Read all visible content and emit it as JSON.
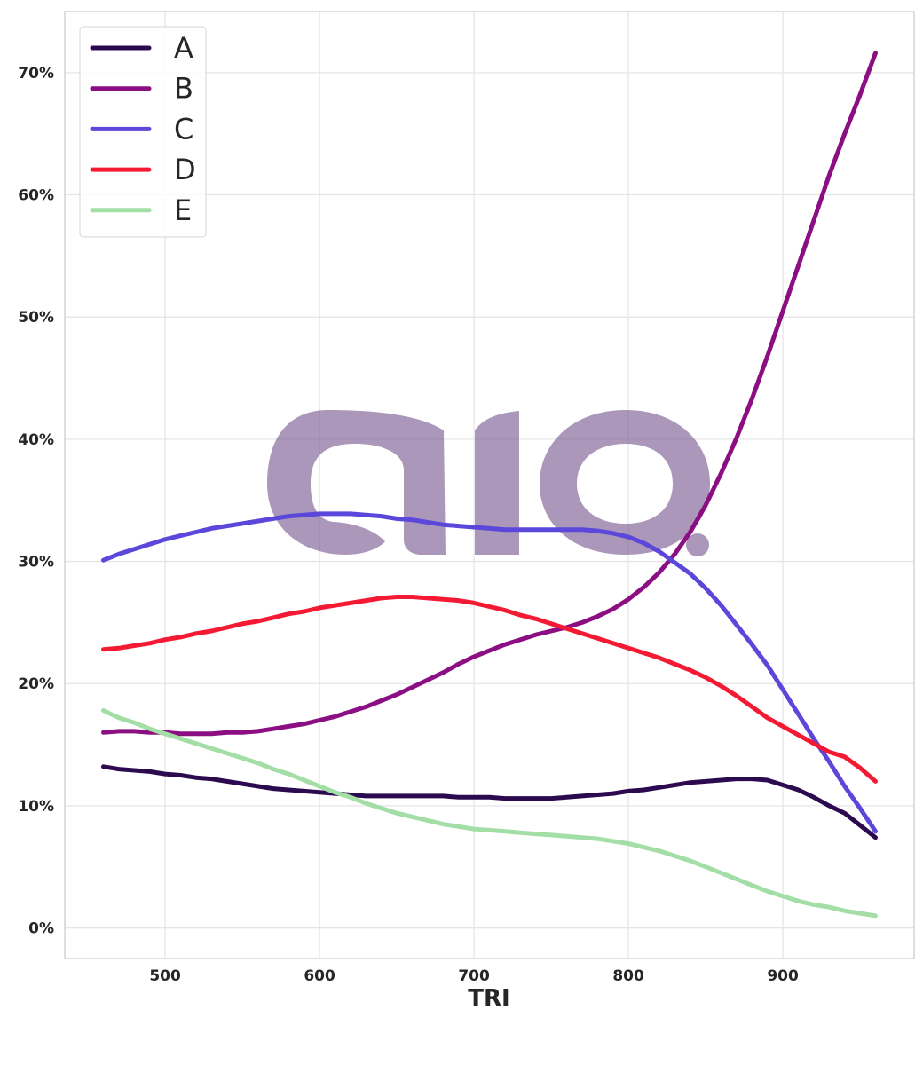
{
  "chart_data": {
    "type": "line",
    "xlabel": "TRI",
    "ylabel": "",
    "xlim": [
      435,
      985
    ],
    "ylim": [
      -2.5,
      75
    ],
    "x_ticks": [
      500,
      600,
      700,
      800,
      900
    ],
    "y_ticks": [
      0,
      10,
      20,
      30,
      40,
      50,
      60,
      70
    ],
    "y_tick_suffix": "%",
    "grid": true,
    "legend_position": "top-left",
    "watermark": "aio",
    "x": [
      460,
      470,
      480,
      490,
      500,
      510,
      520,
      530,
      540,
      550,
      560,
      570,
      580,
      590,
      600,
      610,
      620,
      630,
      640,
      650,
      660,
      670,
      680,
      690,
      700,
      710,
      720,
      730,
      740,
      750,
      760,
      770,
      780,
      790,
      800,
      810,
      820,
      830,
      840,
      850,
      860,
      870,
      880,
      890,
      900,
      910,
      920,
      930,
      940,
      950,
      960
    ],
    "series": [
      {
        "name": "A",
        "color": "#2c0a4f",
        "values": [
          13.2,
          13.0,
          12.9,
          12.8,
          12.6,
          12.5,
          12.3,
          12.2,
          12.0,
          11.8,
          11.6,
          11.4,
          11.3,
          11.2,
          11.1,
          11.0,
          10.9,
          10.8,
          10.8,
          10.8,
          10.8,
          10.8,
          10.8,
          10.7,
          10.7,
          10.7,
          10.6,
          10.6,
          10.6,
          10.6,
          10.7,
          10.8,
          10.9,
          11.0,
          11.2,
          11.3,
          11.5,
          11.7,
          11.9,
          12.0,
          12.1,
          12.2,
          12.2,
          12.1,
          11.7,
          11.3,
          10.7,
          10.0,
          9.4,
          8.4,
          7.4
        ]
      },
      {
        "name": "B",
        "color": "#8b0f82",
        "values": [
          16.0,
          16.1,
          16.1,
          16.0,
          16.0,
          15.9,
          15.9,
          15.9,
          16.0,
          16.0,
          16.1,
          16.3,
          16.5,
          16.7,
          17.0,
          17.3,
          17.7,
          18.1,
          18.6,
          19.1,
          19.7,
          20.3,
          20.9,
          21.6,
          22.2,
          22.7,
          23.2,
          23.6,
          24.0,
          24.3,
          24.6,
          25.0,
          25.5,
          26.1,
          26.9,
          27.9,
          29.1,
          30.6,
          32.4,
          34.6,
          37.2,
          40.1,
          43.3,
          46.8,
          50.5,
          54.2,
          57.9,
          61.6,
          65.0,
          68.2,
          71.6
        ]
      },
      {
        "name": "C",
        "color": "#5b48db",
        "values": [
          30.1,
          30.6,
          31.0,
          31.4,
          31.8,
          32.1,
          32.4,
          32.7,
          32.9,
          33.1,
          33.3,
          33.5,
          33.7,
          33.8,
          33.9,
          33.9,
          33.9,
          33.8,
          33.7,
          33.5,
          33.4,
          33.2,
          33.0,
          32.9,
          32.8,
          32.7,
          32.6,
          32.6,
          32.6,
          32.6,
          32.6,
          32.6,
          32.5,
          32.3,
          32.0,
          31.5,
          30.8,
          29.9,
          29.0,
          27.8,
          26.4,
          24.8,
          23.2,
          21.5,
          19.5,
          17.5,
          15.5,
          13.6,
          11.6,
          9.8,
          7.9
        ]
      },
      {
        "name": "D",
        "color": "#f51a33",
        "values": [
          22.8,
          22.9,
          23.1,
          23.3,
          23.6,
          23.8,
          24.1,
          24.3,
          24.6,
          24.9,
          25.1,
          25.4,
          25.7,
          25.9,
          26.2,
          26.4,
          26.6,
          26.8,
          27.0,
          27.1,
          27.1,
          27.0,
          26.9,
          26.8,
          26.6,
          26.3,
          26.0,
          25.6,
          25.3,
          24.9,
          24.5,
          24.1,
          23.7,
          23.3,
          22.9,
          22.5,
          22.1,
          21.6,
          21.1,
          20.5,
          19.8,
          19.0,
          18.1,
          17.2,
          16.5,
          15.8,
          15.1,
          14.4,
          14.0,
          13.1,
          12.0
        ]
      },
      {
        "name": "E",
        "color": "#a3dea6",
        "values": [
          17.8,
          17.2,
          16.8,
          16.3,
          15.9,
          15.5,
          15.1,
          14.7,
          14.3,
          13.9,
          13.5,
          13.0,
          12.6,
          12.1,
          11.6,
          11.1,
          10.7,
          10.2,
          9.8,
          9.4,
          9.1,
          8.8,
          8.5,
          8.3,
          8.1,
          8.0,
          7.9,
          7.8,
          7.7,
          7.6,
          7.5,
          7.4,
          7.3,
          7.1,
          6.9,
          6.6,
          6.3,
          5.9,
          5.5,
          5.0,
          4.5,
          4.0,
          3.5,
          3.0,
          2.6,
          2.2,
          1.9,
          1.7,
          1.4,
          1.2,
          1.0
        ]
      }
    ]
  }
}
